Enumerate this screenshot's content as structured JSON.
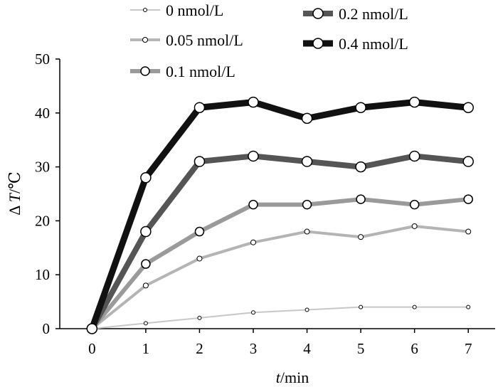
{
  "chart_data": {
    "type": "line",
    "title": "",
    "xlabel_italic": "t",
    "xlabel_rest": "/min",
    "ylabel_prefix": "Δ ",
    "ylabel_italic": "T",
    "ylabel_rest": "/℃",
    "xlim": [
      -0.6,
      7.5
    ],
    "ylim": [
      0,
      50
    ],
    "x_ticks": [
      0,
      1,
      2,
      3,
      4,
      5,
      6,
      7
    ],
    "y_ticks": [
      0,
      10,
      20,
      30,
      40,
      50
    ],
    "grid": false,
    "legend_position": "top",
    "x": [
      0,
      1,
      2,
      3,
      4,
      5,
      6,
      7
    ],
    "series": [
      {
        "name": "0 nmol/L",
        "values": [
          0,
          1,
          2,
          3,
          3.5,
          4,
          4,
          4
        ],
        "color": "#c8c8c8",
        "width": 2,
        "marker": 2.5
      },
      {
        "name": "0.05 nmol/L",
        "values": [
          0,
          8,
          13,
          16,
          18,
          17,
          19,
          18
        ],
        "color": "#b4b4b4",
        "width": 4,
        "marker": 3.5
      },
      {
        "name": "0.1 nmol/L",
        "values": [
          0,
          12,
          18,
          23,
          23,
          24,
          23,
          24
        ],
        "color": "#9a9a9a",
        "width": 6,
        "marker": 6
      },
      {
        "name": "0.2 nmol/L",
        "values": [
          0,
          18,
          31,
          32,
          31,
          30,
          32,
          31
        ],
        "color": "#555555",
        "width": 8,
        "marker": 7
      },
      {
        "name": "0.4 nmol/L",
        "values": [
          0,
          28,
          41,
          42,
          39,
          41,
          42,
          41
        ],
        "color": "#111111",
        "width": 9,
        "marker": 7
      }
    ]
  }
}
